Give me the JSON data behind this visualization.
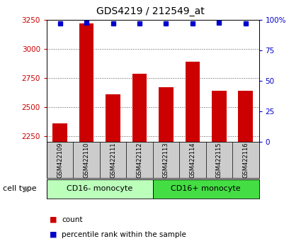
{
  "title": "GDS4219 / 212549_at",
  "samples": [
    "GSM422109",
    "GSM422110",
    "GSM422111",
    "GSM422112",
    "GSM422113",
    "GSM422114",
    "GSM422115",
    "GSM422116"
  ],
  "counts": [
    2360,
    3220,
    2610,
    2790,
    2670,
    2890,
    2640,
    2640
  ],
  "percentile_ranks": [
    97,
    98,
    97,
    97,
    97,
    97,
    98,
    97
  ],
  "groups": [
    {
      "label": "CD16- monocyte",
      "samples": [
        0,
        1,
        2,
        3
      ],
      "color": "#bbffbb"
    },
    {
      "label": "CD16+ monocyte",
      "samples": [
        4,
        5,
        6,
        7
      ],
      "color": "#44dd44"
    }
  ],
  "ylim": [
    2200,
    3250
  ],
  "yticks": [
    2250,
    2500,
    2750,
    3000,
    3250
  ],
  "right_yticks": [
    0,
    25,
    50,
    75,
    100
  ],
  "bar_color": "#cc0000",
  "dot_color": "#0000cc",
  "bar_width": 0.55,
  "grid_color": "#000000",
  "bg_color": "#ffffff",
  "tick_area_color": "#cccccc",
  "left_label_color": "#cc0000",
  "right_label_color": "#0000cc",
  "cell_type_label": "cell type",
  "legend_count_label": "count",
  "legend_percentile_label": "percentile rank within the sample",
  "title_fontsize": 10,
  "tick_fontsize": 7.5,
  "sample_fontsize": 6,
  "group_fontsize": 8,
  "legend_fontsize": 7.5
}
